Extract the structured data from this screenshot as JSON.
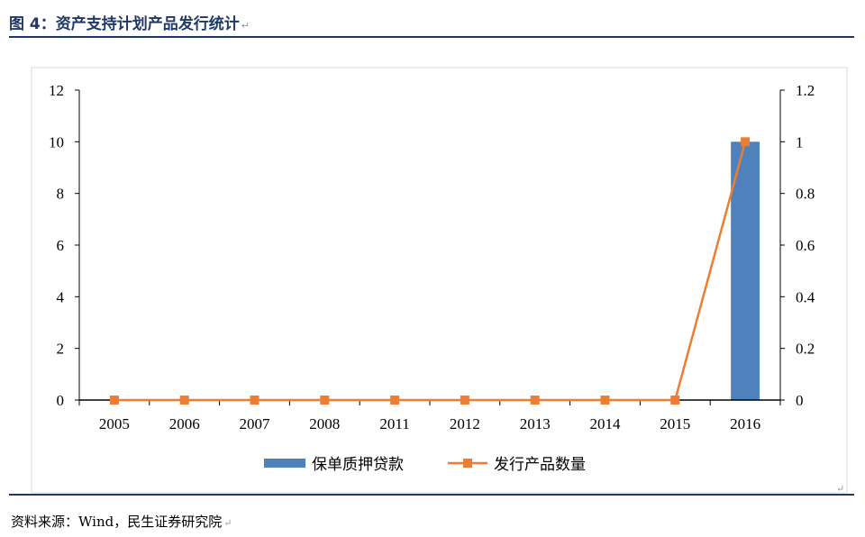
{
  "figure": {
    "title": "图 4：资产支持计划产品发行统计",
    "source": "资料来源：Wind，民生证券研究院",
    "para_mark": "↵"
  },
  "colors": {
    "bar": "#4f81bd",
    "line": "#ed7d31",
    "title": "#1f3864"
  },
  "chart_data": {
    "type": "bar",
    "categories": [
      "2005",
      "2006",
      "2007",
      "2008",
      "2011",
      "2012",
      "2013",
      "2014",
      "2015",
      "2016"
    ],
    "series": [
      {
        "name": "保单质押贷款",
        "type": "bar",
        "axis": "left",
        "values": [
          0,
          0,
          0,
          0,
          0,
          0,
          0,
          0,
          0,
          10
        ]
      },
      {
        "name": "发行产品数量",
        "type": "line",
        "axis": "right",
        "marker": "square",
        "values": [
          0,
          0,
          0,
          0,
          0,
          0,
          0,
          0,
          0,
          1
        ]
      }
    ],
    "y_left": {
      "min": 0,
      "max": 12,
      "ticks": [
        "0",
        "2",
        "4",
        "6",
        "8",
        "10",
        "12"
      ]
    },
    "y_right": {
      "min": 0,
      "max": 1.2,
      "ticks": [
        "0",
        "0.2",
        "0.4",
        "0.6",
        "0.8",
        "1",
        "1.2"
      ]
    },
    "grid": false,
    "legend": "bottom"
  }
}
